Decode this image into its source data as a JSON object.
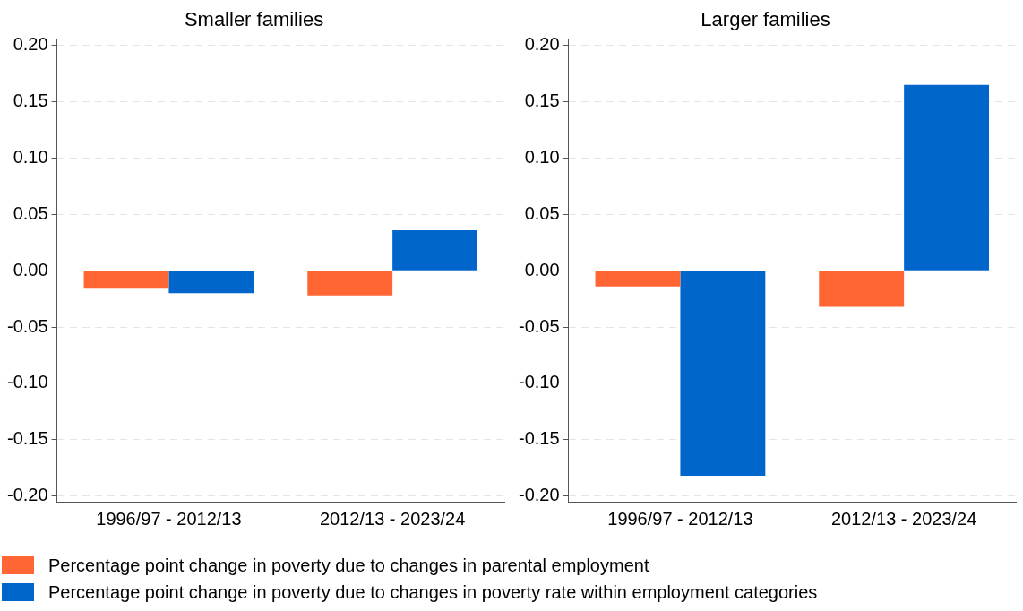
{
  "chart_data": [
    {
      "type": "bar",
      "title": "Smaller families",
      "categories": [
        "1996/97 - 2012/13",
        "2012/13 - 2023/24"
      ],
      "series": [
        {
          "name": "Percentage point change in poverty due to changes in parental employment",
          "color": "#ff6633",
          "values": [
            -0.016,
            -0.022
          ]
        },
        {
          "name": "Percentage point change in poverty due to changes in poverty rate within employment categories",
          "color": "#0066cc",
          "values": [
            -0.02,
            0.036
          ]
        }
      ],
      "ylim": [
        -0.205,
        0.205
      ],
      "yticks": [
        {
          "value": -0.2,
          "label": "-0.20"
        },
        {
          "value": -0.15,
          "label": "-0.15"
        },
        {
          "value": -0.1,
          "label": "-0.10"
        },
        {
          "value": -0.05,
          "label": "-0.05"
        },
        {
          "value": 0,
          "label": "0.00"
        },
        {
          "value": 0.05,
          "label": "0.05"
        },
        {
          "value": 0.1,
          "label": "0.10"
        },
        {
          "value": 0.15,
          "label": "0.15"
        },
        {
          "value": 0.2,
          "label": "0.20"
        }
      ],
      "grid": "y",
      "legend": "bottom"
    },
    {
      "type": "bar",
      "title": "Larger families",
      "categories": [
        "1996/97 - 2012/13",
        "2012/13 - 2023/24"
      ],
      "series": [
        {
          "color": "#ff6633",
          "values": [
            -0.014,
            -0.032
          ]
        },
        {
          "color": "#0066cc",
          "values": [
            -0.182,
            0.165
          ]
        }
      ],
      "ylim": [
        -0.205,
        0.205
      ],
      "yticks": [
        {
          "value": -0.2,
          "label": "-0.20"
        },
        {
          "value": -0.15,
          "label": "-0.15"
        },
        {
          "value": -0.1,
          "label": "-0.10"
        },
        {
          "value": -0.05,
          "label": "-0.05"
        },
        {
          "value": 0,
          "label": "0.00"
        },
        {
          "value": 0.05,
          "label": "0.05"
        },
        {
          "value": 0.1,
          "label": "0.10"
        },
        {
          "value": 0.15,
          "label": "0.15"
        },
        {
          "value": 0.2,
          "label": "0.20"
        }
      ],
      "grid": "y"
    }
  ]
}
